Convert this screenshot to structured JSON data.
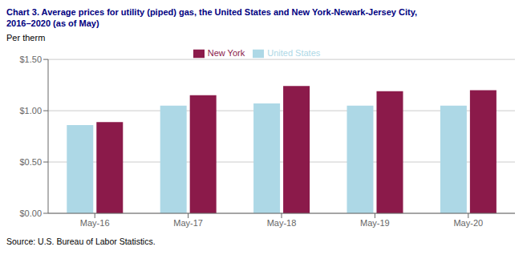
{
  "chart_data": {
    "type": "bar",
    "title": "Chart 3. Average prices for utility (piped) gas, the United States and New York-Newark-Jersey  City,",
    "subtitle": "2016–2020  (as of May)",
    "y_label": "Per therm",
    "source": "Source: U.S. Bureau of Labor Statistics.",
    "categories": [
      "May-16",
      "May-17",
      "May-18",
      "May-19",
      "May-20"
    ],
    "series": [
      {
        "name": "United States",
        "color": "#ADD8E6",
        "values": [
          0.86,
          1.05,
          1.07,
          1.05,
          1.05
        ]
      },
      {
        "name": "New York",
        "color": "#8B1A4A",
        "values": [
          0.89,
          1.15,
          1.24,
          1.19,
          1.2
        ]
      }
    ],
    "ylim": [
      0.0,
      1.5
    ],
    "yticks": [
      {
        "value": 0.0,
        "label": "$0.00"
      },
      {
        "value": 0.5,
        "label": "$0.50"
      },
      {
        "value": 1.0,
        "label": "$1.00"
      },
      {
        "value": 1.5,
        "label": "$1.50"
      }
    ],
    "grid": true,
    "legend": "top"
  }
}
